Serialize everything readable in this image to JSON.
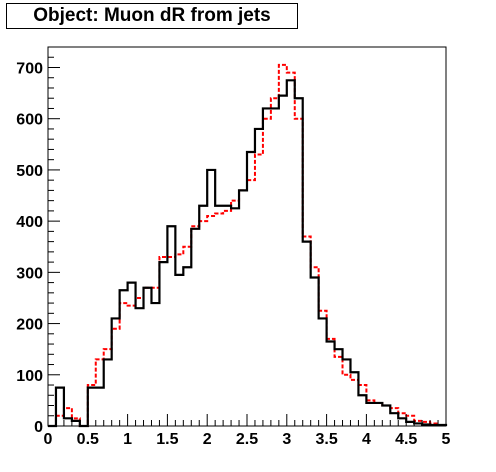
{
  "chart_data": {
    "type": "step-histogram",
    "title": "Object: Muon dR from jets",
    "xlabel": "",
    "ylabel": "",
    "xlim": [
      0,
      5
    ],
    "ylim": [
      0,
      740
    ],
    "x_ticks": [
      "0",
      "0.5",
      "1",
      "1.5",
      "2",
      "2.5",
      "3",
      "3.5",
      "4",
      "4.5",
      "5"
    ],
    "y_ticks": [
      "0",
      "100",
      "200",
      "300",
      "400",
      "500",
      "600",
      "700"
    ],
    "bin_width": 0.1,
    "series": [
      {
        "color": "#000000",
        "style": "solid",
        "values": [
          0,
          75,
          15,
          10,
          0,
          75,
          75,
          130,
          210,
          265,
          280,
          230,
          270,
          240,
          320,
          390,
          295,
          310,
          385,
          430,
          500,
          430,
          430,
          425,
          460,
          535,
          580,
          620,
          620,
          645,
          675,
          640,
          360,
          290,
          210,
          165,
          150,
          130,
          105,
          60,
          45,
          45,
          40,
          25,
          15,
          8,
          5,
          3,
          2,
          2
        ]
      },
      {
        "color": "#ff0000",
        "style": "dashed",
        "values": [
          0,
          20,
          35,
          15,
          0,
          80,
          130,
          150,
          190,
          240,
          235,
          250,
          270,
          270,
          330,
          330,
          335,
          350,
          390,
          400,
          410,
          415,
          420,
          440,
          460,
          480,
          530,
          600,
          640,
          705,
          690,
          600,
          370,
          310,
          225,
          170,
          135,
          100,
          90,
          80,
          50,
          45,
          40,
          35,
          25,
          20,
          10,
          8,
          5,
          2
        ]
      }
    ]
  }
}
